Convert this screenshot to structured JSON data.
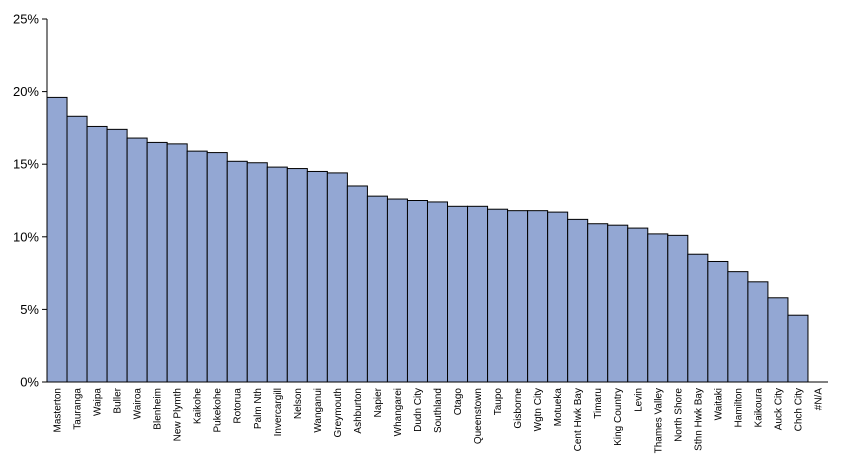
{
  "chart_data": {
    "type": "bar",
    "title": "",
    "xlabel": "",
    "ylabel": "",
    "ylim": [
      0,
      25
    ],
    "yticks": [
      "0%",
      "5%",
      "10%",
      "15%",
      "20%",
      "25%"
    ],
    "grid": false,
    "legend": "none",
    "bar_color": "#93a7d3",
    "bar_edge_color": "#000000",
    "categories": [
      "Masterton",
      "Tauranga",
      "Waipa",
      "Buller",
      "Wairoa",
      "Blenheim",
      "New Plymth",
      "Kaikohe",
      "Pukekohe",
      "Rotorua",
      "Palm Nth",
      "Invercargill",
      "Nelson",
      "Wanganui",
      "Greymouth",
      "Ashburton",
      "Napier",
      "Whangarei",
      "Dudn City",
      "Southland",
      "Otago",
      "Queenstown",
      "Taupo",
      "Gisborne",
      "Wgtn City",
      "Motueka",
      "Cent Hwk Bay",
      "Timaru",
      "King Country",
      "Levin",
      "Thames Valley",
      "North Shore",
      "Sthn Hwk Bay",
      "Waitaki",
      "Hamilton",
      "Kaikoura",
      "Auck City",
      "Chch City",
      "#N/A"
    ],
    "values": [
      19.6,
      18.3,
      17.6,
      17.4,
      16.8,
      16.5,
      16.4,
      15.9,
      15.8,
      15.2,
      15.1,
      14.8,
      14.7,
      14.5,
      14.4,
      13.5,
      12.8,
      12.6,
      12.5,
      12.4,
      12.1,
      12.1,
      11.9,
      11.8,
      11.8,
      11.7,
      11.2,
      10.9,
      10.8,
      10.6,
      10.2,
      10.1,
      8.8,
      8.3,
      7.6,
      6.9,
      5.8,
      4.6,
      0
    ]
  }
}
